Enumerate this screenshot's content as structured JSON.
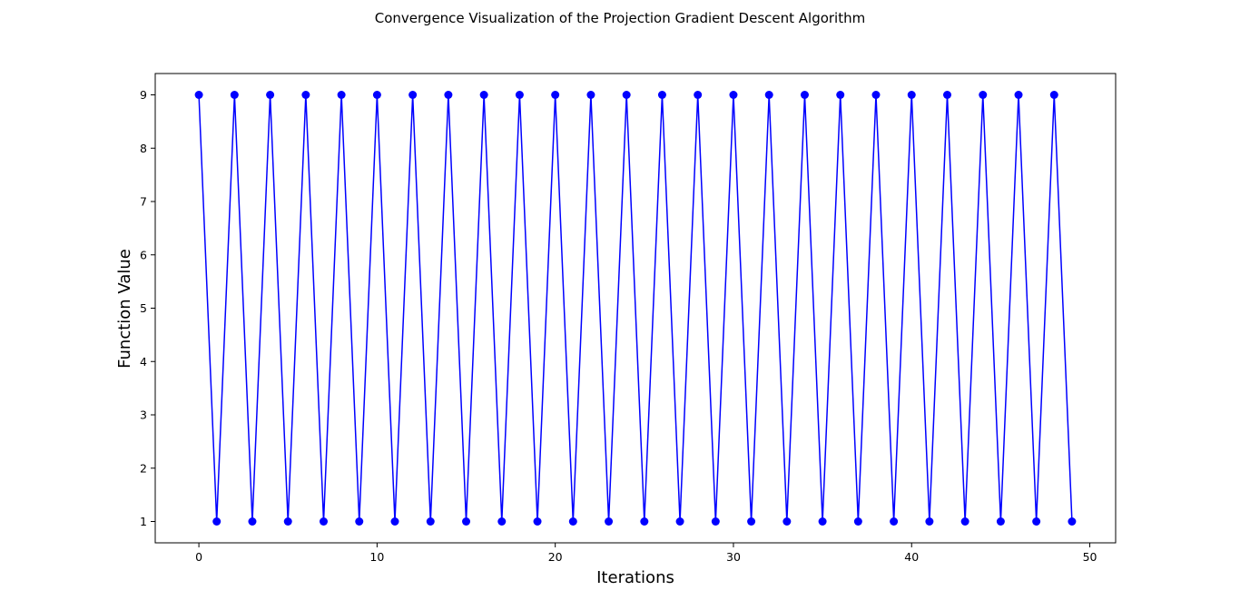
{
  "chart_data": {
    "type": "line",
    "title": "Convergence Visualization of the Projection Gradient Descent Algorithm",
    "xlabel": "Iterations",
    "ylabel": "Function Value",
    "xlim": [
      -2.45,
      51.45
    ],
    "ylim": [
      0.6,
      9.4
    ],
    "xticks": [
      0,
      10,
      20,
      30,
      40,
      50
    ],
    "yticks": [
      1,
      2,
      3,
      4,
      5,
      6,
      7,
      8,
      9
    ],
    "grid": false,
    "series": [
      {
        "color": "#0000ff",
        "marker": "circle",
        "x": [
          0,
          1,
          2,
          3,
          4,
          5,
          6,
          7,
          8,
          9,
          10,
          11,
          12,
          13,
          14,
          15,
          16,
          17,
          18,
          19,
          20,
          21,
          22,
          23,
          24,
          25,
          26,
          27,
          28,
          29,
          30,
          31,
          32,
          33,
          34,
          35,
          36,
          37,
          38,
          39,
          40,
          41,
          42,
          43,
          44,
          45,
          46,
          47,
          48,
          49
        ],
        "values": [
          9,
          1,
          9,
          1,
          9,
          1,
          9,
          1,
          9,
          1,
          9,
          1,
          9,
          1,
          9,
          1,
          9,
          1,
          9,
          1,
          9,
          1,
          9,
          1,
          9,
          1,
          9,
          1,
          9,
          1,
          9,
          1,
          9,
          1,
          9,
          1,
          9,
          1,
          9,
          1,
          9,
          1,
          9,
          1,
          9,
          1,
          9,
          1,
          9,
          1
        ]
      }
    ]
  }
}
